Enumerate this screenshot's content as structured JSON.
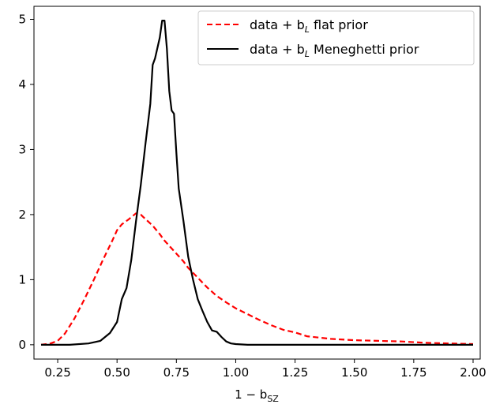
{
  "chart_data": {
    "type": "line",
    "title": "",
    "xlabel_parts": [
      "1 − b",
      "SZ"
    ],
    "ylabel": "",
    "xlim": [
      0.15,
      2.03
    ],
    "ylim": [
      -0.22,
      5.2
    ],
    "xticks": [
      0.25,
      0.5,
      0.75,
      1.0,
      1.25,
      1.5,
      1.75,
      2.0
    ],
    "xtick_labels": [
      "0.25",
      "0.50",
      "0.75",
      "1.00",
      "1.25",
      "1.50",
      "1.75",
      "2.00"
    ],
    "yticks": [
      0,
      1,
      2,
      3,
      4,
      5
    ],
    "ytick_labels": [
      "0",
      "1",
      "2",
      "3",
      "4",
      "5"
    ],
    "grid": false,
    "legend_position": "top-right",
    "series": [
      {
        "name": "data + b_L flat prior",
        "legend_parts": [
          "data + b",
          "L",
          " flat prior"
        ],
        "color": "#ff0000",
        "dash": "dashed",
        "x": [
          0.18,
          0.22,
          0.25,
          0.28,
          0.32,
          0.36,
          0.4,
          0.44,
          0.48,
          0.5,
          0.52,
          0.55,
          0.58,
          0.6,
          0.62,
          0.65,
          0.68,
          0.7,
          0.72,
          0.75,
          0.78,
          0.8,
          0.84,
          0.88,
          0.92,
          0.96,
          1.0,
          1.05,
          1.1,
          1.15,
          1.2,
          1.25,
          1.3,
          1.4,
          1.5,
          1.6,
          1.7,
          1.8,
          1.9,
          2.0
        ],
        "y": [
          0.0,
          0.02,
          0.06,
          0.17,
          0.4,
          0.68,
          0.98,
          1.3,
          1.6,
          1.76,
          1.85,
          1.93,
          2.02,
          2.0,
          1.93,
          1.83,
          1.7,
          1.6,
          1.52,
          1.4,
          1.28,
          1.18,
          1.03,
          0.88,
          0.75,
          0.65,
          0.56,
          0.47,
          0.38,
          0.3,
          0.23,
          0.19,
          0.13,
          0.09,
          0.07,
          0.06,
          0.05,
          0.03,
          0.02,
          0.01
        ]
      },
      {
        "name": "data + b_L Meneghetti prior",
        "legend_parts": [
          "data + b",
          "L",
          " Meneghetti prior"
        ],
        "color": "#000000",
        "dash": "solid",
        "x": [
          0.18,
          0.3,
          0.38,
          0.43,
          0.47,
          0.5,
          0.52,
          0.54,
          0.56,
          0.58,
          0.6,
          0.62,
          0.64,
          0.65,
          0.66,
          0.68,
          0.69,
          0.7,
          0.71,
          0.72,
          0.73,
          0.74,
          0.75,
          0.76,
          0.78,
          0.8,
          0.82,
          0.84,
          0.86,
          0.88,
          0.9,
          0.92,
          0.94,
          0.96,
          0.98,
          1.0,
          1.05,
          1.1,
          1.2,
          1.5,
          2.0
        ],
        "y": [
          0.0,
          0.0,
          0.02,
          0.06,
          0.18,
          0.35,
          0.7,
          0.87,
          1.3,
          1.9,
          2.45,
          3.1,
          3.7,
          4.3,
          4.4,
          4.72,
          4.98,
          4.98,
          4.55,
          3.9,
          3.6,
          3.55,
          2.95,
          2.4,
          1.9,
          1.35,
          1.0,
          0.7,
          0.52,
          0.35,
          0.22,
          0.2,
          0.12,
          0.05,
          0.02,
          0.01,
          0.0,
          0.0,
          0.0,
          0.0,
          0.0
        ]
      }
    ]
  }
}
